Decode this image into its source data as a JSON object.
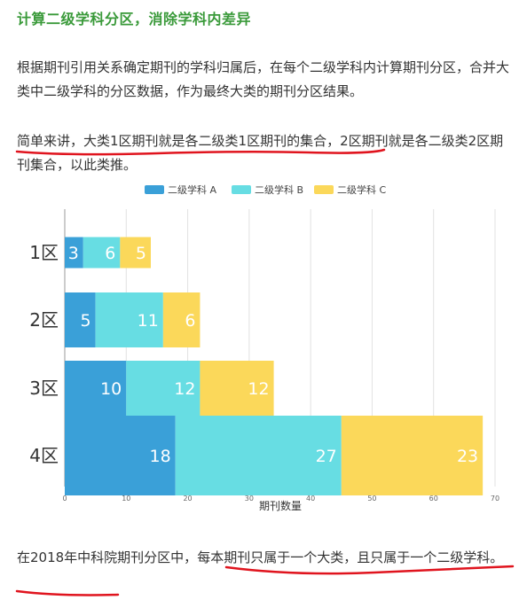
{
  "heading": "计算二级学科分区，消除学科内差异",
  "para1": "根据期刊引用关系确定期刊的学科归属后，在每个二级学科内计算期刊分区，合并大类中二级学科的分区数据，作为最终大类的期刊分区结果。",
  "para2": {
    "highlight": "简单来讲，大类1区期刊就是各二级类1区期刊的集合",
    "rest": "，2区期刊就是各二级类2区期刊集合，以此类推。"
  },
  "para3": {
    "lead": "在2018年中科院期刊分区中，",
    "highlight": "每本期刊只属于一个大类，且只属于一个二级学科",
    "tail": "。"
  },
  "colors": {
    "heading": "#3a9a3a",
    "series_a": "#3aa0d8",
    "series_b": "#67dde3",
    "series_c": "#fbd85a",
    "underline": "#e0141e"
  },
  "chart_data": {
    "type": "bar",
    "orientation": "horizontal",
    "stacked": true,
    "categories": [
      "1区",
      "2区",
      "3区",
      "4区"
    ],
    "series": [
      {
        "name": "二级学科 A",
        "values": [
          3,
          5,
          10,
          18
        ]
      },
      {
        "name": "二级学科 B",
        "values": [
          6,
          11,
          12,
          27
        ]
      },
      {
        "name": "二级学科 C",
        "values": [
          5,
          6,
          12,
          23
        ]
      }
    ],
    "xlabel": "期刊数量",
    "xlim": [
      0,
      70
    ],
    "xticks": [
      0,
      10,
      20,
      30,
      40,
      50,
      60,
      70
    ],
    "grid": true,
    "legend_position": "top-center"
  }
}
